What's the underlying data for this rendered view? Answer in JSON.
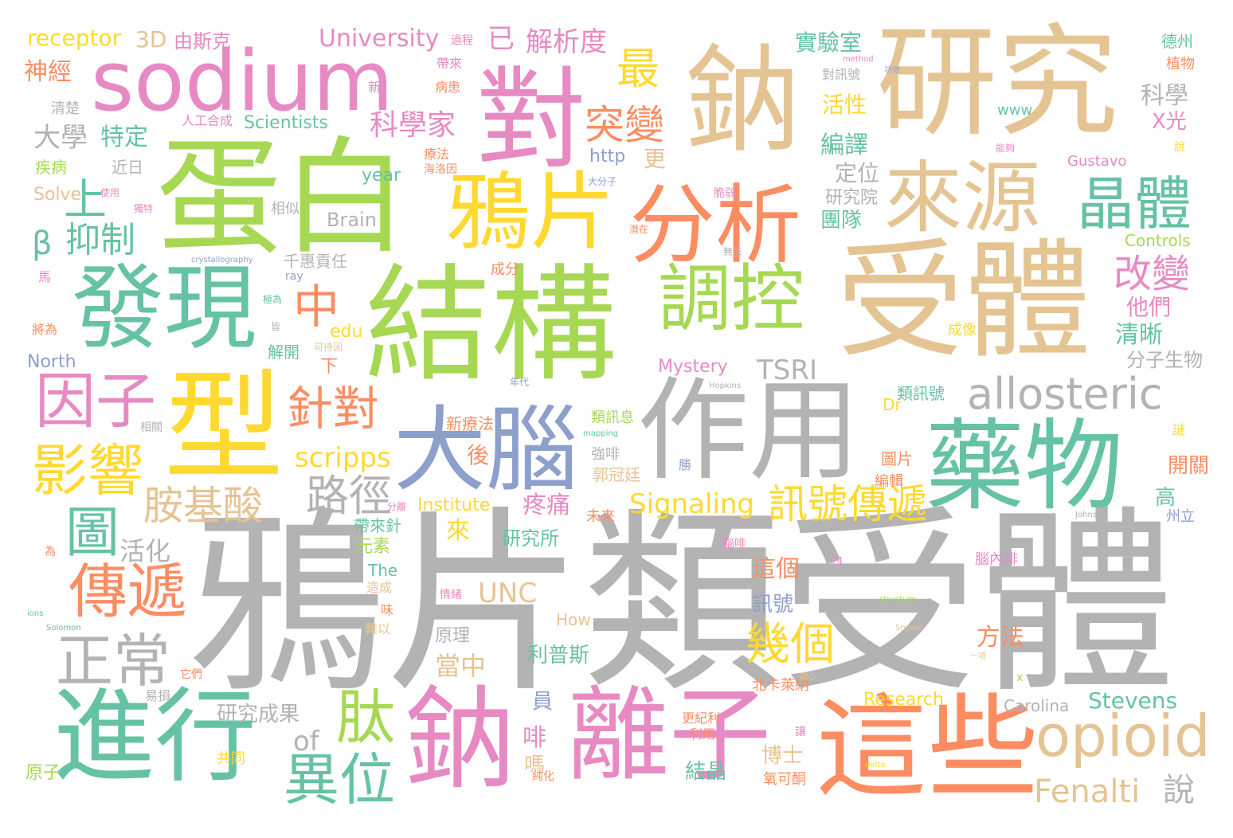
{
  "palette": {
    "tan": "#e5c494",
    "green": "#a6d854",
    "teal": "#66c2a5",
    "orange": "#fc8d62",
    "pink": "#e78ac3",
    "yellow": "#ffd92f",
    "blue": "#8da0cb",
    "grey": "#b3b3b3"
  },
  "words": [
    {
      "text": "鴉片類受體",
      "color": "grey"
    },
    {
      "text": "蛋白",
      "color": "green"
    },
    {
      "text": "研究",
      "color": "tan"
    },
    {
      "text": "受體",
      "color": "tan"
    },
    {
      "text": "結構",
      "color": "green"
    },
    {
      "text": "sodium",
      "color": "pink"
    },
    {
      "text": "對",
      "color": "pink"
    },
    {
      "text": "鈉",
      "color": "tan"
    },
    {
      "text": "作用",
      "color": "grey"
    },
    {
      "text": "型",
      "color": "yellow"
    },
    {
      "text": "發現",
      "color": "teal"
    },
    {
      "text": "進行",
      "color": "teal"
    },
    {
      "text": "鈉",
      "color": "pink"
    },
    {
      "text": "離子",
      "color": "pink"
    },
    {
      "text": "這些",
      "color": "orange"
    },
    {
      "text": "大腦",
      "color": "blue"
    },
    {
      "text": "藥物",
      "color": "teal"
    },
    {
      "text": "鴉片",
      "color": "yellow"
    },
    {
      "text": "分析",
      "color": "orange"
    },
    {
      "text": "來源",
      "color": "tan"
    },
    {
      "text": "調控",
      "color": "green"
    },
    {
      "text": "晶體",
      "color": "teal"
    },
    {
      "text": "opioid",
      "color": "tan"
    },
    {
      "text": "allosteric",
      "color": "grey"
    },
    {
      "text": "因子",
      "color": "pink"
    },
    {
      "text": "影響",
      "color": "yellow"
    },
    {
      "text": "傳遞",
      "color": "orange"
    },
    {
      "text": "正常",
      "color": "grey"
    },
    {
      "text": "異位",
      "color": "teal"
    },
    {
      "text": "肽",
      "color": "green"
    },
    {
      "text": "訊號傳遞",
      "color": "yellow"
    },
    {
      "text": "胺基酸",
      "color": "tan"
    },
    {
      "text": "路徑",
      "color": "grey"
    },
    {
      "text": "針對",
      "color": "orange"
    },
    {
      "text": "中",
      "color": "orange"
    },
    {
      "text": "圖",
      "color": "teal"
    },
    {
      "text": "幾個",
      "color": "yellow"
    },
    {
      "text": "突變",
      "color": "orange"
    },
    {
      "text": "最",
      "color": "yellow"
    },
    {
      "text": "上",
      "color": "teal"
    },
    {
      "text": "改變",
      "color": "pink"
    },
    {
      "text": "scripps",
      "color": "yellow"
    },
    {
      "text": "Fenalti",
      "color": "tan"
    },
    {
      "text": "說",
      "color": "grey"
    },
    {
      "text": "TSRI",
      "color": "grey"
    },
    {
      "text": "Signaling",
      "color": "yellow"
    },
    {
      "text": "UNC",
      "color": "tan"
    },
    {
      "text": "β",
      "color": "teal"
    },
    {
      "text": "抑制",
      "color": "teal"
    },
    {
      "text": "科學家",
      "color": "pink"
    },
    {
      "text": "解析度",
      "color": "pink"
    },
    {
      "text": "3D",
      "color": "tan"
    },
    {
      "text": "receptor",
      "color": "yellow"
    },
    {
      "text": "University",
      "color": "pink"
    },
    {
      "text": "已",
      "color": "pink"
    },
    {
      "text": "由斯克",
      "color": "pink"
    },
    {
      "text": "神經",
      "color": "orange"
    },
    {
      "text": "大學",
      "color": "grey"
    },
    {
      "text": "特定",
      "color": "teal"
    },
    {
      "text": "活化",
      "color": "grey"
    },
    {
      "text": "編譯",
      "color": "teal"
    },
    {
      "text": "實驗室",
      "color": "teal"
    },
    {
      "text": "科學",
      "color": "grey"
    },
    {
      "text": "X光",
      "color": "pink"
    },
    {
      "text": "活性",
      "color": "yellow"
    },
    {
      "text": "定位",
      "color": "grey"
    },
    {
      "text": "團隊",
      "color": "teal"
    },
    {
      "text": "研究院",
      "color": "grey"
    },
    {
      "text": "他們",
      "color": "pink"
    },
    {
      "text": "清晰",
      "color": "teal"
    },
    {
      "text": "分子生物",
      "color": "grey"
    },
    {
      "text": "這個",
      "color": "orange"
    },
    {
      "text": "訊號",
      "color": "blue"
    },
    {
      "text": "方法",
      "color": "orange"
    },
    {
      "text": "Stevens",
      "color": "teal"
    },
    {
      "text": "Carolina",
      "color": "grey"
    },
    {
      "text": "Research",
      "color": "yellow"
    },
    {
      "text": "博士",
      "color": "tan"
    },
    {
      "text": "結晶",
      "color": "teal"
    },
    {
      "text": "研究成果",
      "color": "grey"
    },
    {
      "text": "原子",
      "color": "green"
    },
    {
      "text": "共同",
      "color": "yellow"
    },
    {
      "text": "of",
      "color": "grey"
    },
    {
      "text": "Institute",
      "color": "yellow"
    },
    {
      "text": "研究所",
      "color": "teal"
    },
    {
      "text": "元素",
      "color": "green"
    },
    {
      "text": "疼痛",
      "color": "pink"
    },
    {
      "text": "利普斯",
      "color": "teal"
    },
    {
      "text": "當中",
      "color": "tan"
    },
    {
      "text": "原理",
      "color": "grey"
    },
    {
      "text": "North",
      "color": "blue"
    },
    {
      "text": "Mystery",
      "color": "pink"
    },
    {
      "text": "Brain",
      "color": "grey"
    },
    {
      "text": "Scientists",
      "color": "teal"
    },
    {
      "text": "Solve",
      "color": "tan"
    },
    {
      "text": "Controls",
      "color": "green"
    },
    {
      "text": "Gustavo",
      "color": "pink"
    },
    {
      "text": "year",
      "color": "teal"
    },
    {
      "text": "http",
      "color": "blue"
    },
    {
      "text": "更",
      "color": "tan"
    },
    {
      "text": "www",
      "color": "teal"
    },
    {
      "text": "edu",
      "color": "yellow"
    },
    {
      "text": "The",
      "color": "teal"
    },
    {
      "text": "How",
      "color": "tan"
    },
    {
      "text": "Dr",
      "color": "yellow"
    },
    {
      "text": "清楚",
      "color": "grey"
    },
    {
      "text": "疾病",
      "color": "green"
    },
    {
      "text": "近日",
      "color": "grey"
    },
    {
      "text": "相似",
      "color": "grey"
    },
    {
      "text": "千惠貢任",
      "color": "grey"
    },
    {
      "text": "解開",
      "color": "teal"
    },
    {
      "text": "下",
      "color": "orange"
    },
    {
      "text": "來",
      "color": "yellow"
    },
    {
      "text": "後",
      "color": "orange"
    },
    {
      "text": "帶來針",
      "color": "teal"
    },
    {
      "text": "新療法",
      "color": "orange"
    },
    {
      "text": "類訊號",
      "color": "teal"
    },
    {
      "text": "類訊息",
      "color": "green"
    },
    {
      "text": "郭冠廷",
      "color": "tan"
    },
    {
      "text": "強啡",
      "color": "grey"
    },
    {
      "text": "未來",
      "color": "orange"
    },
    {
      "text": "開關",
      "color": "orange"
    },
    {
      "text": "高",
      "color": "teal"
    },
    {
      "text": "州立",
      "color": "blue"
    },
    {
      "text": "德州",
      "color": "teal"
    },
    {
      "text": "植物",
      "color": "orange"
    },
    {
      "text": "圖片",
      "color": "orange"
    },
    {
      "text": "編輯",
      "color": "orange"
    },
    {
      "text": "成像",
      "color": "yellow"
    },
    {
      "text": "腦內啡",
      "color": "pink"
    },
    {
      "text": "情緒",
      "color": "pink"
    },
    {
      "text": "造成",
      "color": "tan"
    },
    {
      "text": "味",
      "color": "orange"
    },
    {
      "text": "難以",
      "color": "tan"
    },
    {
      "text": "員",
      "color": "blue"
    },
    {
      "text": "啡",
      "color": "pink"
    },
    {
      "text": "嗎",
      "color": "tan"
    },
    {
      "text": "北卡萊納",
      "color": "orange"
    },
    {
      "text": "氧可酮",
      "color": "orange"
    },
    {
      "text": "更紀利",
      "color": "orange"
    },
    {
      "text": "利用",
      "color": "orange"
    },
    {
      "text": "純化",
      "color": "orange"
    },
    {
      "text": "成分",
      "color": "orange"
    },
    {
      "text": "人工合成",
      "color": "pink"
    },
    {
      "text": "對訊號",
      "color": "grey"
    },
    {
      "text": "帶來",
      "color": "pink"
    },
    {
      "text": "病患",
      "color": "orange"
    },
    {
      "text": "過程",
      "color": "pink"
    },
    {
      "text": "新",
      "color": "pink"
    },
    {
      "text": "療法",
      "color": "orange"
    },
    {
      "text": "馬",
      "color": "pink"
    },
    {
      "text": "將為",
      "color": "orange"
    },
    {
      "text": "為",
      "color": "orange"
    },
    {
      "text": "易損",
      "color": "grey"
    },
    {
      "text": "它們",
      "color": "orange"
    },
    {
      "text": "ray",
      "color": "blue"
    },
    {
      "text": "crystallography",
      "color": "blue"
    },
    {
      "text": "structure",
      "color": "green"
    },
    {
      "text": "mapping",
      "color": "teal"
    },
    {
      "text": "Hopkins",
      "color": "grey"
    },
    {
      "text": "Snyder",
      "color": "tan"
    },
    {
      "text": "Johns",
      "color": "grey"
    },
    {
      "text": "Solomon",
      "color": "teal"
    },
    {
      "text": "ions",
      "color": "teal"
    },
    {
      "text": "method",
      "color": "pink"
    },
    {
      "text": "delta",
      "color": "yellow"
    },
    {
      "text": "x",
      "color": "green"
    },
    {
      "text": "謎",
      "color": "yellow"
    },
    {
      "text": "說",
      "color": "yellow"
    },
    {
      "text": "勝",
      "color": "blue"
    },
    {
      "text": "讓",
      "color": "pink"
    },
    {
      "text": "內",
      "color": "pink"
    },
    {
      "text": "皆",
      "color": "grey"
    },
    {
      "text": "極為",
      "color": "teal"
    },
    {
      "text": "脆弱",
      "color": "pink"
    },
    {
      "text": "一項",
      "color": "tan"
    },
    {
      "text": "關心",
      "color": "tan"
    },
    {
      "text": "能夠",
      "color": "pink"
    },
    {
      "text": "分離",
      "color": "pink"
    },
    {
      "text": "年代",
      "color": "blue"
    },
    {
      "text": "可待因",
      "color": "tan"
    },
    {
      "text": "大分子",
      "color": "blue"
    },
    {
      "text": "無法",
      "color": "grey"
    },
    {
      "text": "潛在",
      "color": "orange"
    },
    {
      "text": "使用",
      "color": "pink"
    },
    {
      "text": "獨特",
      "color": "pink"
    },
    {
      "text": "相關",
      "color": "grey"
    },
    {
      "text": "海洛因",
      "color": "orange"
    },
    {
      "text": "功效",
      "color": "blue"
    },
    {
      "text": "腦啡",
      "color": "pink"
    }
  ]
}
